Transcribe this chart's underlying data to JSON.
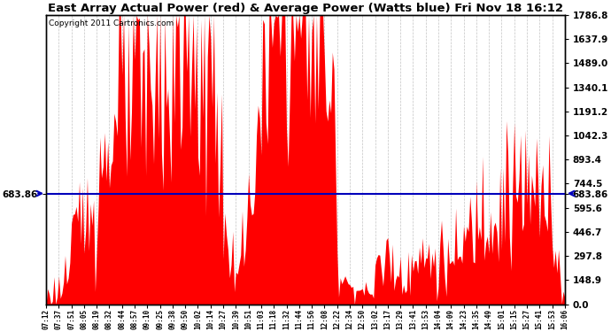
{
  "title": "East Array Actual Power (red) & Average Power (Watts blue) Fri Nov 18 16:12",
  "copyright": "Copyright 2011 Cartronics.com",
  "avg_power": 683.86,
  "ymax": 1786.9,
  "ymin": 0.0,
  "ytick_interval": 148.9,
  "bar_color": "#FF0000",
  "avg_line_color": "#0000BB",
  "background_color": "#FFFFFF",
  "grid_color": "#AAAAAA",
  "time_labels": [
    "07:12",
    "07:37",
    "07:51",
    "08:05",
    "08:19",
    "08:32",
    "08:44",
    "08:57",
    "09:10",
    "09:25",
    "09:38",
    "09:50",
    "10:02",
    "10:14",
    "10:27",
    "10:39",
    "10:51",
    "11:03",
    "11:18",
    "11:32",
    "11:44",
    "11:56",
    "12:08",
    "12:22",
    "12:34",
    "12:50",
    "13:02",
    "13:17",
    "13:29",
    "13:41",
    "13:53",
    "14:04",
    "14:09",
    "14:23",
    "14:35",
    "14:49",
    "15:01",
    "15:15",
    "15:27",
    "15:41",
    "15:53",
    "16:06"
  ],
  "figsize": [
    6.9,
    3.75
  ],
  "dpi": 100
}
